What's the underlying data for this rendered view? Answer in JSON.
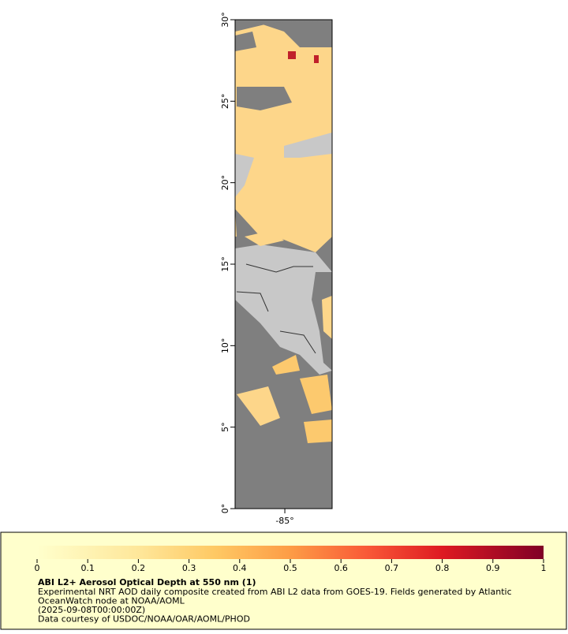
{
  "map": {
    "lat_range": [
      0,
      30
    ],
    "lon_range": [
      -88.05,
      -82.1
    ],
    "lat_ticks": [
      {
        "value": 30,
        "label": "30°"
      },
      {
        "value": 25,
        "label": "25°"
      },
      {
        "value": 20,
        "label": "20°"
      },
      {
        "value": 15,
        "label": "15°"
      },
      {
        "value": 10,
        "label": "10°"
      },
      {
        "value": 5,
        "label": "5°"
      },
      {
        "value": 0,
        "label": "0°"
      }
    ],
    "lon_ticks": [
      {
        "value": -85,
        "label": "-85°"
      }
    ]
  },
  "colorbar": {
    "range": [
      0,
      1
    ],
    "ticks": [
      0,
      0.1,
      0.2,
      0.3,
      0.4,
      0.5,
      0.6,
      0.7,
      0.8,
      0.9,
      1
    ]
  },
  "legend": {
    "title": "ABI L2+ Aerosol Optical Depth at 550 nm (1)",
    "lines": [
      "Experimental NRT AOD daily composite created from ABI L2 data from GOES-19. Fields generated by Atlantic",
      "OceanWatch node at NOAA/AOML",
      "(2025-09-08T00:00:00Z)",
      "Data courtesy of USDOC/NOAA/OAR/AOML/PHOD"
    ]
  }
}
